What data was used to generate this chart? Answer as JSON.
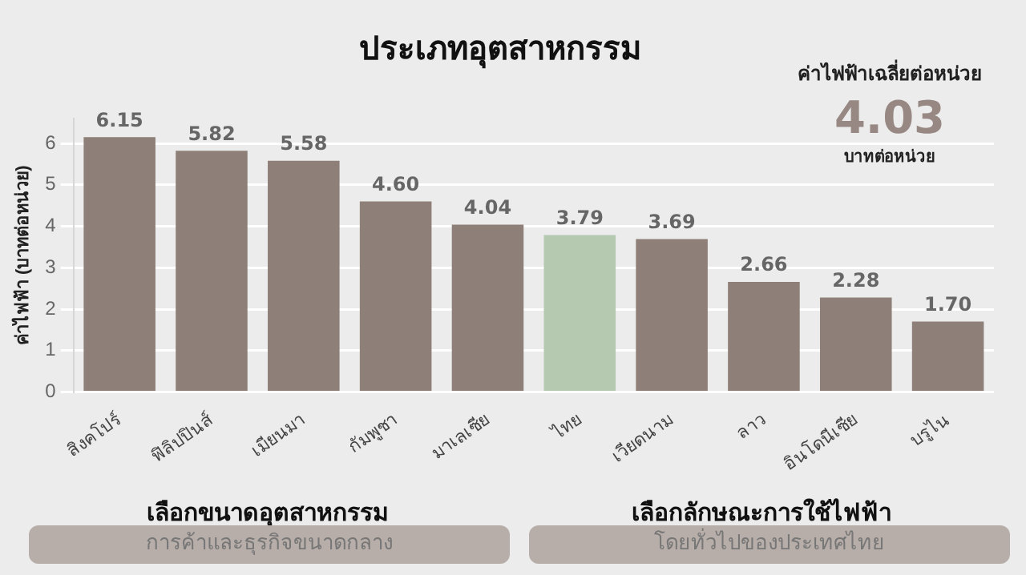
{
  "chart_data": {
    "type": "bar",
    "title": "ประเภทอุตสาหกรรม",
    "ylabel": "ค่าไฟฟ้า (บาทต่อหน่วย)",
    "categories": [
      "สิงคโปร์",
      "ฟิลิปปินส์",
      "เมียนมา",
      "กัมพูชา",
      "มาเลเซีย",
      "ไทย",
      "เวียดนาม",
      "ลาว",
      "อินโดนีเซีย",
      "บรูไน"
    ],
    "values": [
      6.15,
      5.82,
      5.58,
      4.6,
      4.04,
      3.79,
      3.69,
      2.66,
      2.28,
      1.7
    ],
    "colors": [
      "#8e8079",
      "#8e8079",
      "#8e8079",
      "#8e8079",
      "#8e8079",
      "#b5c8b0",
      "#8e8079",
      "#8e8079",
      "#8e8079",
      "#8e8079"
    ],
    "ylim": [
      0,
      6.6
    ],
    "yticks": [
      0,
      1,
      2,
      3,
      4,
      5,
      6
    ],
    "grid": "y",
    "value_labels": [
      "6.15",
      "5.82",
      "5.58",
      "4.60",
      "4.04",
      "3.79",
      "3.69",
      "2.66",
      "2.28",
      "1.70"
    ],
    "annotations": [
      "ค่าไฟฟ้าเฉลี่ยต่อหน่วย",
      "4.03",
      "บาทต่อหน่วย",
      "เลือกขนาดอุตสาหกรรม",
      "การค้าและธุรกิจขนาดกลาง",
      "เลือกลักษณะการใช้ไฟฟ้า",
      "โดยทั่วไปของประเทศไทย"
    ]
  }
}
